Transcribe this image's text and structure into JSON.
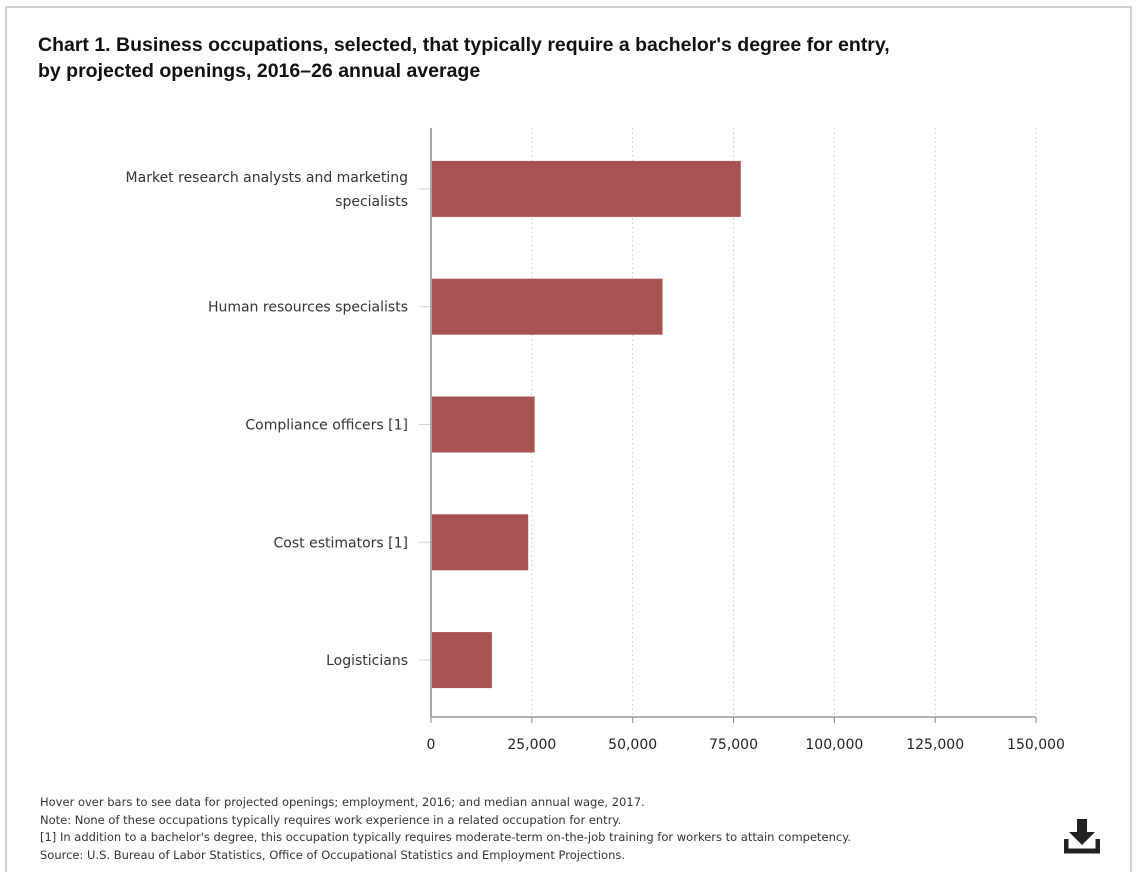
{
  "chart_data": {
    "type": "bar",
    "orientation": "horizontal",
    "title_lines": [
      "Chart 1. Business occupations, selected, that typically require a bachelor's degree for entry,",
      "by projected openings, 2016–26 annual average"
    ],
    "categories": [
      [
        "Market research analysts and marketing",
        "specialists"
      ],
      [
        "Human resources specialists"
      ],
      [
        "Compliance officers [1]"
      ],
      [
        "Cost estimators [1]"
      ],
      [
        "Logisticians"
      ]
    ],
    "values": [
      76800,
      57400,
      25700,
      24100,
      15100
    ],
    "xlim": [
      0,
      150000
    ],
    "xticks": [
      0,
      25000,
      50000,
      75000,
      100000,
      125000,
      150000
    ],
    "xtick_labels": [
      "0",
      "25,000",
      "50,000",
      "75,000",
      "100,000",
      "125,000",
      "150,000"
    ],
    "grid": "vertical-dotted",
    "bar_color": "#a85252"
  },
  "notes": [
    "Hover over bars to see data for projected openings; employment, 2016; and median annual wage, 2017.",
    "Note: None of these occupations typically requires work experience in a related occupation for entry.",
    "[1] In addition to a bachelor's degree, this occupation typically requires moderate-term on-the-job training for workers to attain competency.",
    "Source: U.S. Bureau of Labor Statistics, Office of Occupational Statistics and Employment Projections."
  ],
  "download_icon": "download-icon"
}
